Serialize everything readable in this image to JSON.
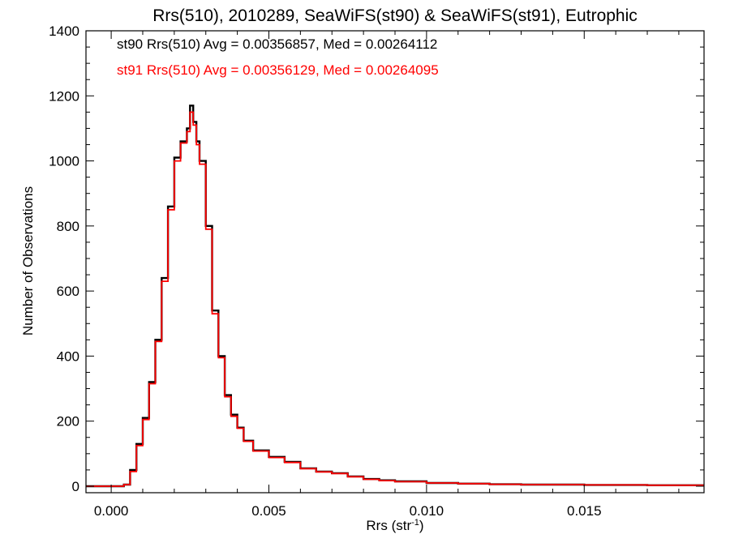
{
  "chart_data": {
    "type": "line",
    "title": "Rrs(510), 2010289, SeaWiFS(st90) & SeaWiFS(st91), Eutrophic",
    "xlabel_main": "Rrs (str",
    "xlabel_sup": "-1",
    "xlabel_close": ")",
    "ylabel": "Number of Observations",
    "xlim": [
      -0.0008,
      0.0188
    ],
    "ylim": [
      -20,
      1400
    ],
    "x_ticks": [
      0.0,
      0.005,
      0.01,
      0.015
    ],
    "x_tick_labels": [
      "0.000",
      "0.005",
      "0.010",
      "0.015"
    ],
    "y_ticks": [
      0,
      200,
      400,
      600,
      800,
      1000,
      1200,
      1400
    ],
    "y_tick_labels": [
      "0",
      "200",
      "400",
      "600",
      "800",
      "1000",
      "1200",
      "1400"
    ],
    "legend_position": "top-left",
    "annotations": [
      {
        "text": "st90 Rrs(510) Avg = 0.00356857, Med = 0.00264112",
        "color": "#000000"
      },
      {
        "text": "st91 Rrs(510) Avg = 0.00356129, Med = 0.00264095",
        "color": "#ff0000"
      }
    ],
    "series": [
      {
        "name": "st90",
        "color": "#000000",
        "x": [
          -0.0008,
          0.0004,
          0.0006,
          0.0008,
          0.001,
          0.0012,
          0.0014,
          0.0016,
          0.0018,
          0.002,
          0.0022,
          0.0024,
          0.0025,
          0.0026,
          0.0027,
          0.0028,
          0.003,
          0.0032,
          0.0034,
          0.0036,
          0.0038,
          0.004,
          0.0042,
          0.0045,
          0.005,
          0.0055,
          0.006,
          0.0065,
          0.007,
          0.0075,
          0.008,
          0.0085,
          0.009,
          0.01,
          0.011,
          0.012,
          0.013,
          0.015,
          0.017,
          0.0188
        ],
        "y": [
          0,
          5,
          50,
          130,
          210,
          320,
          450,
          640,
          860,
          1010,
          1060,
          1100,
          1170,
          1120,
          1060,
          1000,
          800,
          540,
          400,
          280,
          220,
          180,
          140,
          110,
          90,
          75,
          55,
          45,
          40,
          30,
          22,
          18,
          15,
          10,
          8,
          6,
          5,
          4,
          3,
          3
        ]
      },
      {
        "name": "st91",
        "color": "#ff0000",
        "x": [
          -0.0008,
          0.0004,
          0.0006,
          0.0008,
          0.001,
          0.0012,
          0.0014,
          0.0016,
          0.0018,
          0.002,
          0.0022,
          0.0024,
          0.0025,
          0.0026,
          0.0027,
          0.0028,
          0.003,
          0.0032,
          0.0034,
          0.0036,
          0.0038,
          0.004,
          0.0042,
          0.0045,
          0.005,
          0.0055,
          0.006,
          0.0065,
          0.007,
          0.0075,
          0.008,
          0.0085,
          0.009,
          0.01,
          0.011,
          0.012,
          0.013,
          0.015,
          0.017,
          0.0188
        ],
        "y": [
          0,
          5,
          45,
          125,
          205,
          315,
          445,
          630,
          850,
          1000,
          1055,
          1090,
          1150,
          1110,
          1050,
          990,
          790,
          530,
          395,
          275,
          215,
          178,
          138,
          108,
          88,
          73,
          54,
          44,
          39,
          29,
          21,
          17,
          14,
          10,
          8,
          6,
          5,
          4,
          3,
          3
        ]
      }
    ]
  }
}
